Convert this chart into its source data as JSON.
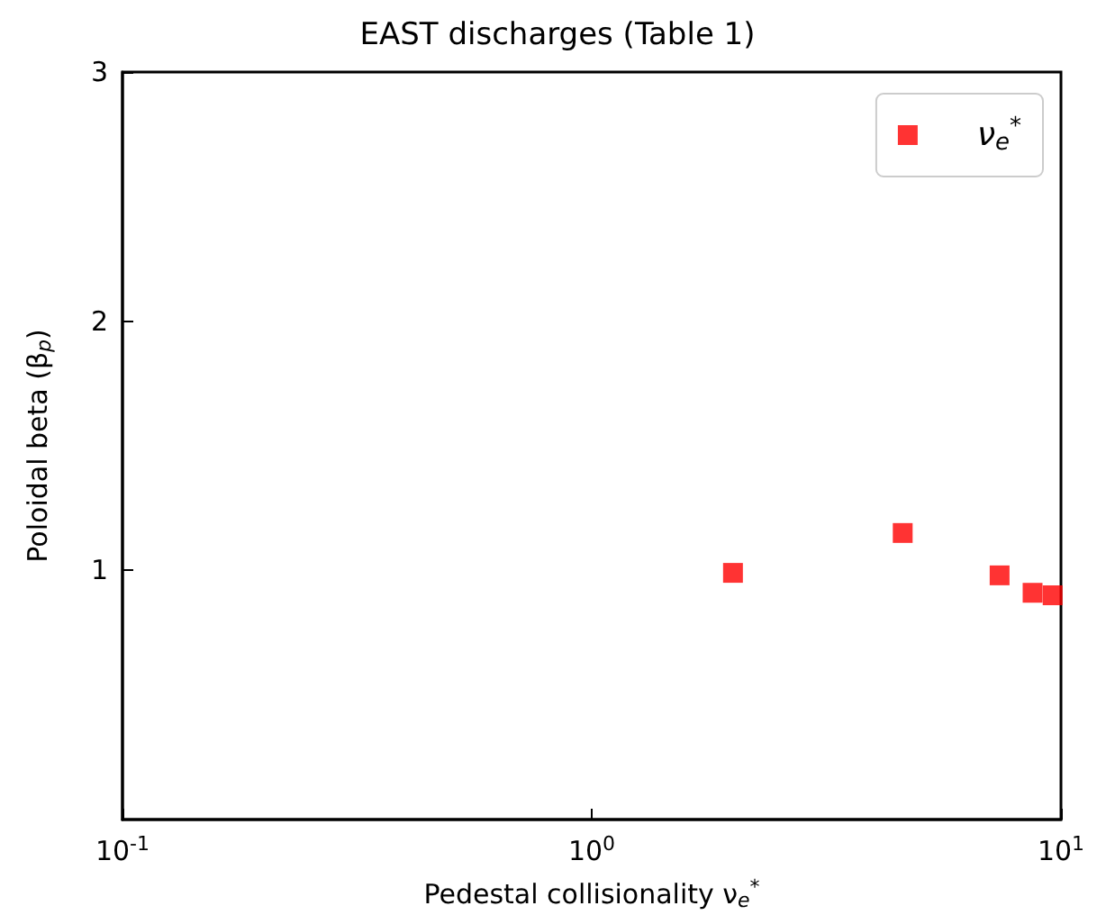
{
  "chart_data": {
    "type": "scatter",
    "title": "EAST discharges (Table 1)",
    "xlabel": "Pedestal collisionality ν$_{e}$$^{*}$",
    "ylabel": "Poloidal beta (β$_{p}$)",
    "log": "x",
    "xlim": [
      0.1,
      10
    ],
    "xticks": [
      {
        "value": 0.1,
        "label": "10$^{-1}$"
      },
      {
        "value": 1,
        "label": "10$^{0}$"
      },
      {
        "value": 10,
        "label": "10$^{1}$"
      }
    ],
    "ylim": [
      0,
      3
    ],
    "yticks": [
      1,
      2,
      3
    ],
    "grid": false,
    "legend": "top right",
    "marker": "square",
    "series": [
      {
        "name": "ν$_{e}$$^{*}$",
        "color": "#ff0000",
        "x": [
          2.0,
          4.6,
          7.4,
          8.7,
          9.6
        ],
        "values": [
          0.99,
          1.15,
          0.98,
          0.91,
          0.9
        ]
      }
    ]
  }
}
